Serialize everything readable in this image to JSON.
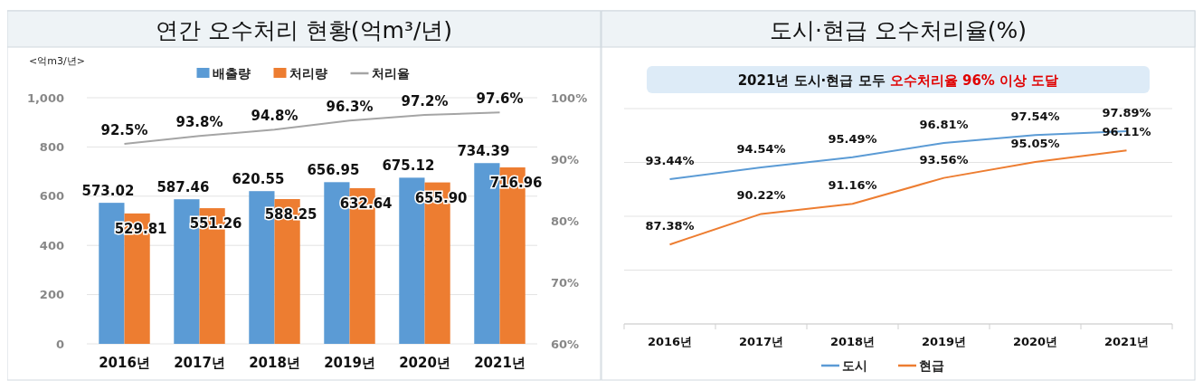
{
  "chart_data": [
    {
      "type": "bar",
      "title": "연간 오수처리 현황(억m³/년)",
      "ylabel": "<억m3/년>",
      "categories": [
        "2016년",
        "2017년",
        "2018년",
        "2019년",
        "2020년",
        "2021년"
      ],
      "series": [
        {
          "name": "배출량",
          "color": "#5b9bd5",
          "values": [
            573.02,
            587.46,
            620.55,
            656.95,
            675.12,
            734.39
          ]
        },
        {
          "name": "처리량",
          "color": "#ed7d31",
          "values": [
            529.81,
            551.26,
            588.25,
            632.64,
            655.9,
            716.96
          ],
          "value_labels": [
            "529.81",
            "551.26",
            "588.25",
            "632.64",
            "655.90",
            "716.96"
          ]
        },
        {
          "name": "처리율",
          "type": "line",
          "axis": "y2",
          "color": "#a5a5a5",
          "values": [
            92.5,
            93.8,
            94.8,
            96.3,
            97.2,
            97.6
          ],
          "value_labels": [
            "92.5%",
            "93.8%",
            "94.8%",
            "96.3%",
            "97.2%",
            "97.6%"
          ]
        }
      ],
      "ylim": [
        0,
        1000
      ],
      "yticks": [
        0,
        200,
        400,
        600,
        800,
        {
          "value": 1000,
          "label": "1,000"
        }
      ],
      "y2lim": [
        60,
        100
      ],
      "y2ticks": [
        {
          "value": 60,
          "label": "60%"
        },
        {
          "value": 70,
          "label": "70%"
        },
        {
          "value": 80,
          "label": "80%"
        },
        {
          "value": 90,
          "label": "90%"
        },
        {
          "value": 100,
          "label": "100%"
        }
      ],
      "grid": "y",
      "legend": "top",
      "data_labels": true
    },
    {
      "type": "line",
      "title": "도시·현급 오수처리율(%)",
      "annotations": [
        "2021년 도시·현급 모두 ",
        "오수처리율 96% 이상 도달"
      ],
      "categories": [
        "2016년",
        "2017년",
        "2018년",
        "2019년",
        "2020년",
        "2021년"
      ],
      "series": [
        {
          "name": "도시",
          "color": "#5b9bd5",
          "values": [
            93.44,
            94.54,
            95.49,
            96.81,
            97.54,
            97.89
          ],
          "value_labels": [
            "93.44%",
            "94.54%",
            "95.49%",
            "96.81%",
            "97.54%",
            "97.89%"
          ]
        },
        {
          "name": "현급",
          "color": "#ed7d31",
          "values": [
            87.38,
            90.22,
            91.16,
            93.56,
            95.05,
            96.11
          ],
          "value_labels": [
            "87.38%",
            "90.22%",
            "91.16%",
            "93.56%",
            "95.05%",
            "96.11%"
          ]
        }
      ],
      "ylim": [
        80,
        100
      ],
      "yticks": [
        {
          "value": 80,
          "label": null
        },
        {
          "value": 85,
          "label": null
        },
        {
          "value": 90,
          "label": null
        },
        {
          "value": 95,
          "label": null
        },
        {
          "value": 100,
          "label": null
        }
      ],
      "tick_labels": "x",
      "grid": "y",
      "legend": "bottom",
      "marker": "none",
      "line_style": "solid"
    }
  ]
}
